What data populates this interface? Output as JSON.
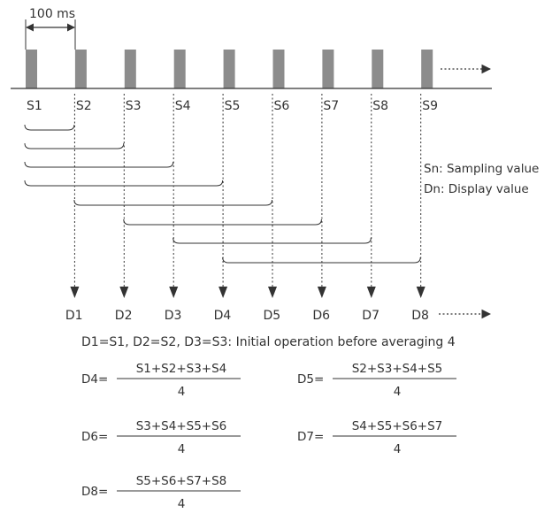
{
  "interval_label": "100 ms",
  "samples": [
    "S1",
    "S2",
    "S3",
    "S4",
    "S5",
    "S6",
    "S7",
    "S8",
    "S9"
  ],
  "displays": [
    "D1",
    "D2",
    "D3",
    "D4",
    "D5",
    "D6",
    "D7",
    "D8"
  ],
  "legend": {
    "sampling": "Sn: Sampling value",
    "display": "Dn: Display value"
  },
  "note": "D1=S1, D2=S2, D3=S3: Initial operation before averaging 4",
  "formulas": [
    {
      "label": "D4=",
      "numerator": "S1+S2+S3+S4",
      "denominator": "4"
    },
    {
      "label": "D5=",
      "numerator": "S2+S3+S4+S5",
      "denominator": "4"
    },
    {
      "label": "D6=",
      "numerator": "S3+S4+S5+S6",
      "denominator": "4"
    },
    {
      "label": "D7=",
      "numerator": "S4+S5+S6+S7",
      "denominator": "4"
    },
    {
      "label": "D8=",
      "numerator": "S5+S6+S7+S8",
      "denominator": "4"
    }
  ],
  "colors": {
    "pulse": "#8c8c8c",
    "line": "#333333"
  }
}
